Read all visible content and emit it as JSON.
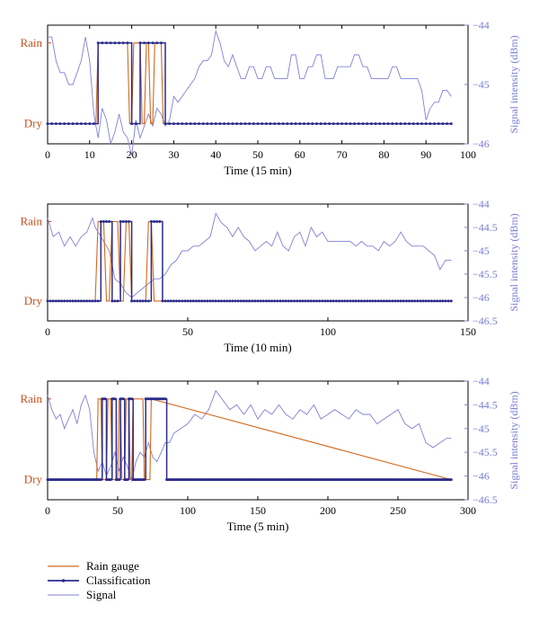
{
  "legend": {
    "rain_gauge": "Rain gauge",
    "classification": "Classification",
    "signal": "Signal"
  },
  "colors": {
    "rain_gauge": "#d2691e",
    "classification": "#2b2b8c",
    "signal": "#8080d8",
    "state_label": "#c8501e"
  },
  "chart_data": [
    {
      "type": "line",
      "xlabel": "Time (15 min)",
      "ylabel_left_states": [
        "Dry",
        "Rain"
      ],
      "ylabel_right": "Signal intensity (dBm)",
      "xlim": [
        0,
        100
      ],
      "x_ticks": [
        0,
        10,
        20,
        30,
        40,
        50,
        60,
        70,
        80,
        90,
        100
      ],
      "y_right_lim": [
        -46,
        -44
      ],
      "y_right_ticks": [
        -46,
        -45,
        -44
      ],
      "series": [
        {
          "name": "Rain gauge",
          "x": [
            0,
            11.5,
            12,
            19,
            19.5,
            20,
            20.5,
            22,
            22.5,
            23,
            23.5,
            24,
            24.5,
            25,
            25.5,
            27,
            27.5,
            96
          ],
          "values": [
            0,
            0,
            1,
            1,
            0,
            0,
            1,
            1,
            0,
            0,
            1,
            1,
            0,
            0,
            1,
            1,
            0,
            0
          ]
        },
        {
          "name": "Classification",
          "x": [
            0,
            11,
            12,
            18,
            19,
            20,
            21,
            22,
            23,
            24,
            25,
            26,
            27,
            28,
            96
          ],
          "values": [
            0,
            0,
            1,
            1,
            1,
            0,
            0,
            1,
            1,
            1,
            1,
            1,
            1,
            0,
            0
          ]
        },
        {
          "name": "Signal",
          "x": [
            0,
            1,
            2,
            3,
            4,
            5,
            6,
            7,
            8,
            9,
            10,
            11,
            12,
            13,
            14,
            15,
            16,
            17,
            18,
            19,
            20,
            21,
            22,
            23,
            24,
            25,
            26,
            27,
            28,
            29,
            30,
            31,
            32,
            33,
            34,
            35,
            36,
            37,
            38,
            39,
            40,
            41,
            42,
            43,
            44,
            45,
            46,
            47,
            48,
            49,
            50,
            51,
            52,
            53,
            54,
            55,
            56,
            57,
            58,
            59,
            60,
            61,
            62,
            63,
            64,
            65,
            66,
            67,
            68,
            69,
            70,
            71,
            72,
            73,
            74,
            75,
            76,
            77,
            78,
            79,
            80,
            81,
            82,
            83,
            84,
            85,
            86,
            87,
            88,
            89,
            90,
            91,
            92,
            93,
            94,
            95,
            96
          ],
          "values": [
            -44.2,
            -44.2,
            -44.6,
            -44.8,
            -44.8,
            -45,
            -45,
            -44.8,
            -44.6,
            -44.2,
            -44.6,
            -45.5,
            -45.9,
            -45.4,
            -45.6,
            -46,
            -45.8,
            -45.5,
            -45.8,
            -45.9,
            -46.2,
            -45.6,
            -45.9,
            -45.7,
            -45.5,
            -45.7,
            -45.4,
            -45.5,
            -45.7,
            -45.6,
            -45.2,
            -45.3,
            -45.2,
            -45.1,
            -45,
            -44.9,
            -44.7,
            -44.6,
            -44.6,
            -44.5,
            -44.1,
            -44.3,
            -44.6,
            -44.7,
            -44.5,
            -44.7,
            -44.9,
            -44.9,
            -44.7,
            -44.7,
            -44.9,
            -44.9,
            -44.7,
            -44.7,
            -44.9,
            -44.9,
            -44.9,
            -44.9,
            -44.5,
            -44.5,
            -44.9,
            -44.9,
            -44.7,
            -44.7,
            -44.5,
            -44.5,
            -44.9,
            -44.9,
            -44.9,
            -44.7,
            -44.7,
            -44.7,
            -44.7,
            -44.5,
            -44.5,
            -44.7,
            -44.7,
            -44.9,
            -44.9,
            -44.9,
            -44.9,
            -44.9,
            -44.7,
            -44.7,
            -44.9,
            -44.9,
            -44.9,
            -44.9,
            -44.9,
            -45.1,
            -45.6,
            -45.4,
            -45.3,
            -45.3,
            -45.1,
            -45.1,
            -45.2
          ]
        }
      ]
    },
    {
      "type": "line",
      "xlabel": "Time (10 min)",
      "ylabel_left_states": [
        "Dry",
        "Rain"
      ],
      "ylabel_right": "Signal intensity (dBm)",
      "xlim": [
        0,
        150
      ],
      "x_ticks": [
        0,
        50,
        100,
        150
      ],
      "y_right_lim": [
        -46.5,
        -44
      ],
      "y_right_ticks": [
        -46.5,
        -46,
        -45.5,
        -45,
        -44.5,
        -44
      ],
      "series": [
        {
          "name": "Rain gauge",
          "x": [
            0,
            17,
            18,
            20,
            21,
            22,
            23,
            25,
            26,
            27,
            28,
            29,
            30,
            35,
            36,
            37,
            38,
            144
          ],
          "values": [
            0,
            0,
            1,
            1,
            0,
            0,
            1,
            1,
            0,
            0,
            1,
            1,
            0,
            0,
            1,
            1,
            0,
            0
          ]
        },
        {
          "name": "Classification",
          "x": [
            0,
            18,
            19,
            22,
            23,
            25,
            26,
            29,
            30,
            36,
            37,
            40,
            41,
            144
          ],
          "values": [
            0,
            0,
            1,
            1,
            0,
            0,
            1,
            1,
            0,
            0,
            1,
            1,
            0,
            0
          ]
        },
        {
          "name": "Signal",
          "x": [
            0,
            2,
            4,
            6,
            8,
            10,
            12,
            14,
            16,
            17,
            18,
            20,
            22,
            24,
            26,
            28,
            30,
            32,
            34,
            36,
            38,
            40,
            42,
            44,
            46,
            48,
            50,
            52,
            54,
            56,
            58,
            60,
            62,
            64,
            66,
            68,
            70,
            72,
            74,
            76,
            78,
            80,
            82,
            84,
            86,
            88,
            90,
            92,
            94,
            96,
            98,
            100,
            102,
            104,
            106,
            108,
            110,
            112,
            114,
            116,
            118,
            120,
            122,
            124,
            126,
            128,
            130,
            132,
            134,
            136,
            138,
            140,
            142,
            144
          ],
          "values": [
            -44.3,
            -44.7,
            -44.6,
            -44.9,
            -44.7,
            -44.9,
            -44.7,
            -44.6,
            -44.3,
            -44.5,
            -44.6,
            -44.8,
            -45,
            -45.6,
            -45.7,
            -45.9,
            -46,
            -45.9,
            -45.8,
            -45.7,
            -45.6,
            -45.6,
            -45.5,
            -45.3,
            -45.2,
            -45,
            -45,
            -44.9,
            -44.9,
            -44.8,
            -44.7,
            -44.2,
            -44.4,
            -44.5,
            -44.7,
            -44.5,
            -44.7,
            -44.8,
            -45,
            -44.9,
            -44.8,
            -44.9,
            -44.6,
            -44.9,
            -45,
            -44.7,
            -44.6,
            -44.9,
            -44.5,
            -44.7,
            -44.6,
            -44.8,
            -44.8,
            -44.8,
            -44.8,
            -44.8,
            -44.9,
            -44.8,
            -44.9,
            -44.9,
            -45,
            -44.8,
            -44.9,
            -44.8,
            -44.6,
            -44.8,
            -44.9,
            -44.9,
            -44.9,
            -45,
            -45.1,
            -45.4,
            -45.2,
            -45.2
          ]
        }
      ]
    },
    {
      "type": "line",
      "xlabel": "Time (5 min)",
      "ylabel_left_states": [
        "Dry",
        "Rain"
      ],
      "ylabel_right": "Signal intensity (dBm)",
      "xlim": [
        0,
        300
      ],
      "x_ticks": [
        0,
        50,
        100,
        150,
        200,
        250,
        300
      ],
      "y_right_lim": [
        -46.5,
        -44
      ],
      "y_right_ticks": [
        -46.5,
        -46,
        -45.5,
        -45,
        -44.5,
        -44
      ],
      "series": [
        {
          "name": "Rain gauge",
          "x": [
            0,
            35,
            36,
            38,
            39,
            42,
            43,
            45,
            46,
            50,
            51,
            52,
            53,
            55,
            56,
            58,
            59,
            60,
            61,
            68,
            69,
            73,
            74,
            288
          ],
          "values": [
            0,
            0,
            1,
            1,
            0,
            0,
            1,
            1,
            0,
            0,
            1,
            1,
            0,
            0,
            1,
            1,
            0,
            0,
            1,
            1,
            0,
            0,
            1,
            0
          ]
        },
        {
          "name": "Classification",
          "x": [
            0,
            38,
            39,
            41,
            42,
            45,
            46,
            48,
            49,
            51,
            52,
            54,
            55,
            57,
            58,
            60,
            61,
            69,
            70,
            74,
            75,
            84,
            85,
            288
          ],
          "values": [
            0,
            0,
            1,
            1,
            0,
            0,
            1,
            1,
            0,
            0,
            1,
            1,
            0,
            0,
            1,
            1,
            0,
            0,
            1,
            1,
            1,
            1,
            0,
            0
          ]
        },
        {
          "name": "Signal",
          "x": [
            0,
            3,
            6,
            9,
            12,
            15,
            18,
            21,
            24,
            27,
            30,
            33,
            36,
            39,
            42,
            45,
            48,
            51,
            54,
            57,
            60,
            63,
            66,
            69,
            72,
            75,
            78,
            81,
            84,
            87,
            90,
            95,
            100,
            105,
            110,
            115,
            120,
            125,
            130,
            135,
            140,
            145,
            150,
            155,
            160,
            165,
            170,
            175,
            180,
            185,
            190,
            195,
            200,
            205,
            210,
            215,
            220,
            225,
            230,
            235,
            240,
            245,
            250,
            255,
            260,
            265,
            270,
            275,
            280,
            285,
            288
          ],
          "values": [
            -44.3,
            -44.6,
            -44.8,
            -44.7,
            -45,
            -44.8,
            -44.6,
            -44.9,
            -44.5,
            -44.3,
            -44.6,
            -45.5,
            -45.9,
            -45.7,
            -46,
            -45.8,
            -45.5,
            -45.9,
            -45.6,
            -45.8,
            -46.1,
            -45.7,
            -45.5,
            -45.6,
            -45.3,
            -45.6,
            -45.7,
            -45.5,
            -45.3,
            -45.3,
            -45.1,
            -45,
            -44.9,
            -44.7,
            -44.8,
            -44.6,
            -44.2,
            -44.4,
            -44.6,
            -44.5,
            -44.7,
            -44.5,
            -44.8,
            -44.6,
            -44.7,
            -44.5,
            -44.7,
            -44.8,
            -44.6,
            -44.7,
            -44.5,
            -44.8,
            -44.7,
            -44.6,
            -44.7,
            -44.8,
            -44.6,
            -44.7,
            -44.7,
            -44.9,
            -44.8,
            -44.7,
            -44.6,
            -44.9,
            -45,
            -44.9,
            -45.3,
            -45.4,
            -45.3,
            -45.2,
            -45.2
          ]
        }
      ]
    }
  ]
}
